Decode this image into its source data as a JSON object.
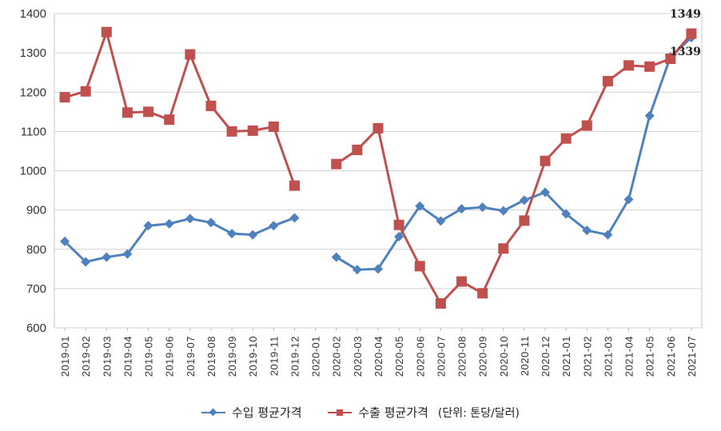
{
  "chart_data": {
    "type": "line",
    "categories": [
      "2019-01",
      "2019-02",
      "2019-03",
      "2019-04",
      "2019-05",
      "2019-06",
      "2019-07",
      "2019-08",
      "2019-09",
      "2019-10",
      "2019-11",
      "2019-12",
      "2020-01",
      "2020-02",
      "2020-03",
      "2020-04",
      "2020-05",
      "2020-06",
      "2020-07",
      "2020-08",
      "2020-09",
      "2020-10",
      "2020-11",
      "2020-12",
      "2021-01",
      "2021-02",
      "2021-03",
      "2021-04",
      "2021-05",
      "2021-06",
      "2021-07"
    ],
    "ylim": [
      600,
      1400
    ],
    "yticks": [
      600,
      700,
      800,
      900,
      1000,
      1100,
      1200,
      1300,
      1400
    ],
    "grid": true,
    "legend_position": "bottom",
    "unit_note": "(단위: 톤당/달러)",
    "series": [
      {
        "name": "수입 평균가격",
        "color": "#4F81BD",
        "marker": "diamond",
        "values": [
          820,
          768,
          780,
          788,
          860,
          865,
          878,
          868,
          840,
          837,
          860,
          880,
          null,
          780,
          748,
          750,
          832,
          910,
          872,
          903,
          907,
          898,
          925,
          945,
          890,
          848,
          837,
          927,
          1140,
          1290,
          1339
        ]
      },
      {
        "name": "수출 평균가격",
        "color": "#C0504D",
        "marker": "square",
        "values": [
          1187,
          1202,
          1353,
          1148,
          1150,
          1130,
          1296,
          1165,
          1100,
          1102,
          1112,
          962,
          null,
          1017,
          1053,
          1108,
          862,
          757,
          662,
          718,
          688,
          802,
          873,
          1025,
          1082,
          1115,
          1228,
          1268,
          1265,
          1285,
          1349
        ]
      }
    ],
    "annotations": [
      {
        "series": 1,
        "index": 30,
        "text": "1349"
      },
      {
        "series": 0,
        "index": 30,
        "text": "1339"
      }
    ]
  }
}
